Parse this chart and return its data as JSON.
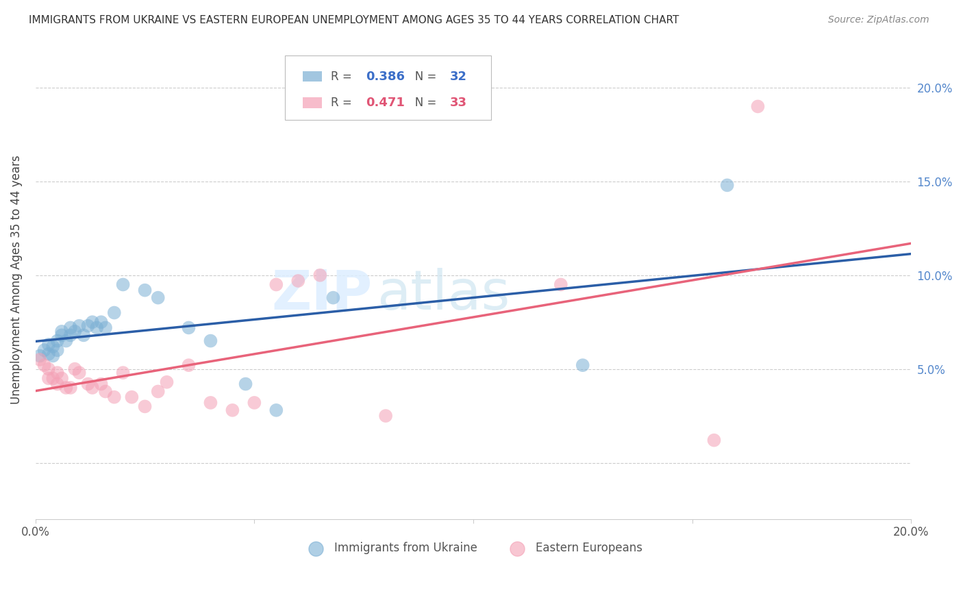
{
  "title": "IMMIGRANTS FROM UKRAINE VS EASTERN EUROPEAN UNEMPLOYMENT AMONG AGES 35 TO 44 YEARS CORRELATION CHART",
  "source": "Source: ZipAtlas.com",
  "ylabel": "Unemployment Among Ages 35 to 44 years",
  "xlim": [
    0.0,
    0.2
  ],
  "ylim": [
    -0.03,
    0.225
  ],
  "legend1_R": "0.386",
  "legend1_N": "32",
  "legend2_R": "0.471",
  "legend2_N": "33",
  "blue_color": "#7BAFD4",
  "pink_color": "#F4A0B5",
  "line_blue": "#2B5EA7",
  "line_pink": "#E8637A",
  "ukraine_x": [
    0.001,
    0.002,
    0.003,
    0.003,
    0.004,
    0.004,
    0.005,
    0.005,
    0.006,
    0.006,
    0.007,
    0.008,
    0.008,
    0.009,
    0.01,
    0.011,
    0.012,
    0.013,
    0.014,
    0.015,
    0.016,
    0.018,
    0.02,
    0.025,
    0.028,
    0.035,
    0.04,
    0.048,
    0.055,
    0.068,
    0.125,
    0.158
  ],
  "ukraine_y": [
    0.057,
    0.06,
    0.063,
    0.058,
    0.062,
    0.057,
    0.065,
    0.06,
    0.068,
    0.07,
    0.065,
    0.068,
    0.072,
    0.07,
    0.073,
    0.068,
    0.073,
    0.075,
    0.072,
    0.075,
    0.072,
    0.08,
    0.095,
    0.092,
    0.088,
    0.072,
    0.065,
    0.042,
    0.028,
    0.088,
    0.052,
    0.148
  ],
  "eastern_x": [
    0.001,
    0.002,
    0.003,
    0.003,
    0.004,
    0.005,
    0.005,
    0.006,
    0.007,
    0.008,
    0.009,
    0.01,
    0.012,
    0.013,
    0.015,
    0.016,
    0.018,
    0.02,
    0.022,
    0.025,
    0.028,
    0.03,
    0.035,
    0.04,
    0.045,
    0.05,
    0.055,
    0.06,
    0.065,
    0.08,
    0.12,
    0.155,
    0.165
  ],
  "eastern_y": [
    0.055,
    0.052,
    0.05,
    0.045,
    0.045,
    0.048,
    0.042,
    0.045,
    0.04,
    0.04,
    0.05,
    0.048,
    0.042,
    0.04,
    0.042,
    0.038,
    0.035,
    0.048,
    0.035,
    0.03,
    0.038,
    0.043,
    0.052,
    0.032,
    0.028,
    0.032,
    0.095,
    0.097,
    0.1,
    0.025,
    0.095,
    0.012,
    0.19
  ]
}
